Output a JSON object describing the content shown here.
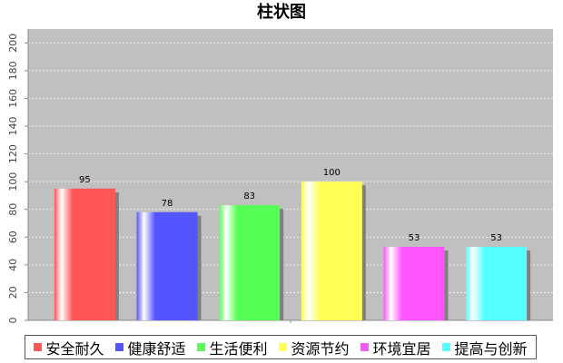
{
  "chart_data": {
    "type": "bar",
    "title": "柱状图",
    "categories": [
      null
    ],
    "series": [
      {
        "name": "安全耐久",
        "color": "#ff5555",
        "values": [
          95
        ]
      },
      {
        "name": "健康舒适",
        "color": "#5555ff",
        "values": [
          78
        ]
      },
      {
        "name": "生活便利",
        "color": "#55ff55",
        "values": [
          83
        ]
      },
      {
        "name": "资源节约",
        "color": "#ffff55",
        "values": [
          100
        ]
      },
      {
        "name": "环境宜居",
        "color": "#ff55ff",
        "values": [
          53
        ]
      },
      {
        "name": "提高与创新",
        "color": "#55ffff",
        "values": [
          53
        ]
      }
    ],
    "ylim": [
      0,
      210
    ],
    "yticks": [
      0,
      20,
      40,
      60,
      80,
      100,
      120,
      140,
      160,
      180,
      200
    ],
    "grid": true,
    "legend": "bottom",
    "value_labels_shown": true
  }
}
